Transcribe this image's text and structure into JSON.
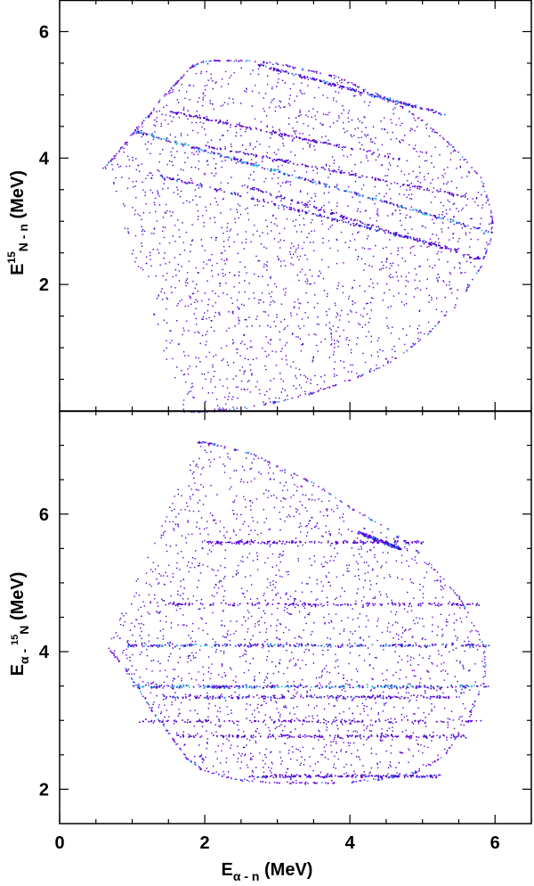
{
  "chart_data": [
    {
      "type": "scatter",
      "panel": "top",
      "xlabel": "",
      "ylabel": {
        "base": "E",
        "sup": "15",
        "sub": "N - n",
        "unit": " (MeV)"
      },
      "xlim": [
        0,
        6.5
      ],
      "ylim": [
        0,
        6.5
      ],
      "x_ticks": [
        0,
        2,
        4,
        6
      ],
      "y_ticks": [
        2,
        4,
        6
      ],
      "y_tick_labels": [
        "2",
        "4",
        "6"
      ],
      "colormap": [
        "#3b00c8",
        "#6a00e0",
        "#1f8cff",
        "#17c8d6",
        "#2fd08a",
        "#b0b000"
      ],
      "boundary": {
        "name": "kinematic-boundary",
        "x": [
          0.6,
          0.8,
          1.0,
          1.2,
          1.4,
          1.6,
          1.8,
          2.0,
          2.2,
          2.6,
          3.0,
          3.4,
          3.8,
          4.2,
          4.6,
          5.0,
          5.4,
          5.8,
          5.95,
          5.95,
          5.8,
          5.5,
          5.0,
          4.5,
          4.0,
          3.5,
          3.0,
          2.5,
          2.0,
          1.7
        ],
        "y": [
          3.85,
          4.1,
          4.4,
          4.65,
          4.95,
          5.2,
          5.45,
          5.55,
          5.55,
          5.55,
          5.5,
          5.4,
          5.3,
          5.1,
          4.9,
          4.6,
          4.2,
          3.7,
          3.1,
          2.8,
          2.3,
          1.75,
          1.15,
          0.75,
          0.5,
          0.3,
          0.15,
          0.05,
          0.0,
          0.0
        ]
      },
      "bands": [
        {
          "x": [
            1.0,
            5.9
          ],
          "y": [
            4.45,
            2.85
          ],
          "intensity": 0.9
        },
        {
          "x": [
            1.3,
            5.5
          ],
          "y": [
            3.75,
            2.55
          ],
          "intensity": 0.55
        },
        {
          "x": [
            2.7,
            5.3
          ],
          "y": [
            5.5,
            4.7
          ],
          "intensity": 0.6
        },
        {
          "x": [
            1.5,
            4.7
          ],
          "y": [
            4.75,
            4.0
          ],
          "intensity": 0.35
        },
        {
          "x": [
            2.0,
            5.6
          ],
          "y": [
            4.2,
            3.4
          ],
          "intensity": 0.35
        },
        {
          "x": [
            2.6,
            5.8
          ],
          "y": [
            3.55,
            2.4
          ],
          "intensity": 0.25
        }
      ]
    },
    {
      "type": "scatter",
      "panel": "bottom",
      "xlabel": {
        "base": "E",
        "sub": "α - n",
        "unit": " (MeV)"
      },
      "ylabel": {
        "base": "E",
        "sub": "α - ",
        "sup": "15",
        "sub2": "N",
        "unit": " (MeV)"
      },
      "xlim": [
        0,
        6.5
      ],
      "ylim": [
        1.5,
        7.5
      ],
      "x_ticks": [
        0,
        2,
        4,
        6
      ],
      "x_tick_labels": [
        "0",
        "2",
        "4",
        "6"
      ],
      "y_ticks": [
        2,
        4,
        6
      ],
      "y_tick_labels": [
        "2",
        "4",
        "6"
      ],
      "boundary": {
        "name": "kinematic-boundary",
        "x": [
          0.65,
          0.9,
          1.1,
          1.3,
          1.55,
          1.75,
          1.95,
          2.4,
          2.9,
          3.4,
          3.9,
          4.4,
          4.9,
          5.3,
          5.6,
          5.85,
          5.85,
          5.5,
          5.0,
          4.5,
          4.0,
          3.5,
          3.0,
          2.6,
          2.2,
          2.0,
          1.9
        ],
        "y": [
          4.1,
          3.75,
          3.45,
          3.1,
          2.75,
          2.45,
          2.3,
          2.15,
          2.1,
          2.1,
          2.1,
          2.15,
          2.25,
          2.5,
          3.0,
          3.6,
          4.1,
          4.8,
          5.4,
          5.8,
          6.1,
          6.45,
          6.7,
          6.9,
          7.0,
          7.05,
          7.05
        ]
      },
      "bands": [
        {
          "x": [
            1.0,
            5.9
          ],
          "y": [
            3.5,
            3.5
          ],
          "intensity": 0.85
        },
        {
          "x": [
            1.4,
            5.5
          ],
          "y": [
            3.35,
            3.35
          ],
          "intensity": 0.55
        },
        {
          "x": [
            0.9,
            5.9
          ],
          "y": [
            4.1,
            4.1
          ],
          "intensity": 0.7
        },
        {
          "x": [
            1.6,
            5.6
          ],
          "y": [
            2.78,
            2.78
          ],
          "intensity": 0.4
        },
        {
          "x": [
            2.6,
            5.3
          ],
          "y": [
            2.2,
            2.2
          ],
          "intensity": 0.5
        },
        {
          "x": [
            2.0,
            5.0
          ],
          "y": [
            5.6,
            5.6
          ],
          "intensity": 0.35
        },
        {
          "x": [
            1.5,
            5.8
          ],
          "y": [
            4.7,
            4.7
          ],
          "intensity": 0.3
        },
        {
          "x": [
            1.0,
            5.8
          ],
          "y": [
            3.0,
            3.0
          ],
          "intensity": 0.3
        },
        {
          "x": [
            4.1,
            4.7
          ],
          "y": [
            5.75,
            5.5
          ],
          "intensity": 0.6
        }
      ]
    }
  ]
}
